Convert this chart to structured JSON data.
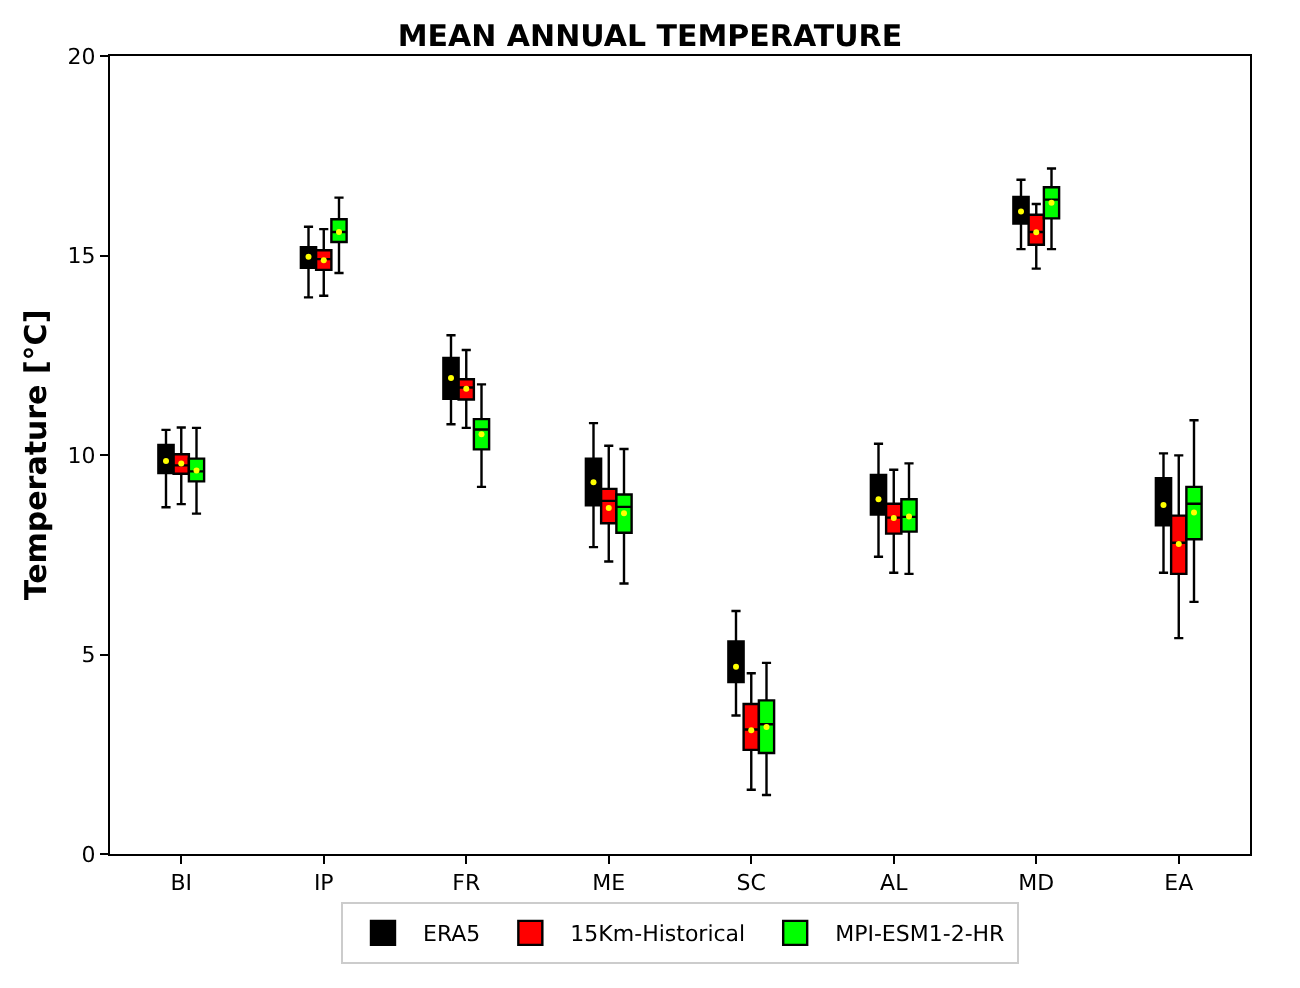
{
  "chart_data": {
    "type": "box",
    "title": "MEAN ANNUAL TEMPERATURE",
    "ylabel": "Temperature [°C]",
    "categories": [
      "BI",
      "IP",
      "FR",
      "ME",
      "SC",
      "AL",
      "MD",
      "EA"
    ],
    "series": [
      {
        "name": "ERA5",
        "color": "#000000",
        "boxes": [
          {
            "low": 8.69,
            "q1": 9.55,
            "median": 9.8,
            "q3": 10.25,
            "high": 10.63,
            "mean": 9.85
          },
          {
            "low": 13.95,
            "q1": 14.69,
            "median": 14.96,
            "q3": 15.21,
            "high": 15.72,
            "mean": 14.97
          },
          {
            "low": 10.77,
            "q1": 11.41,
            "median": 12.03,
            "q3": 12.43,
            "high": 13.0,
            "mean": 11.93
          },
          {
            "low": 7.69,
            "q1": 8.74,
            "median": 9.43,
            "q3": 9.91,
            "high": 10.8,
            "mean": 9.32
          },
          {
            "low": 3.47,
            "q1": 4.31,
            "median": 4.87,
            "q3": 5.33,
            "high": 6.09,
            "mean": 4.69
          },
          {
            "low": 7.45,
            "q1": 8.51,
            "median": 8.88,
            "q3": 9.5,
            "high": 10.28,
            "mean": 8.89
          },
          {
            "low": 15.16,
            "q1": 15.8,
            "median": 16.07,
            "q3": 16.47,
            "high": 16.9,
            "mean": 16.1
          },
          {
            "low": 7.05,
            "q1": 8.24,
            "median": 8.78,
            "q3": 9.42,
            "high": 10.04,
            "mean": 8.75
          }
        ]
      },
      {
        "name": "15Km-Historical",
        "color": "#ff0000",
        "boxes": [
          {
            "low": 8.77,
            "q1": 9.53,
            "median": 9.74,
            "q3": 10.02,
            "high": 10.69,
            "mean": 9.79
          },
          {
            "low": 13.99,
            "q1": 14.64,
            "median": 14.91,
            "q3": 15.13,
            "high": 15.66,
            "mean": 14.88
          },
          {
            "low": 10.68,
            "q1": 11.39,
            "median": 11.69,
            "q3": 11.9,
            "high": 12.63,
            "mean": 11.66
          },
          {
            "low": 7.33,
            "q1": 8.29,
            "median": 8.85,
            "q3": 9.15,
            "high": 10.23,
            "mean": 8.67
          },
          {
            "low": 1.61,
            "q1": 2.61,
            "median": 3.12,
            "q3": 3.76,
            "high": 4.53,
            "mean": 3.1
          },
          {
            "low": 7.05,
            "q1": 8.03,
            "median": 8.43,
            "q3": 8.78,
            "high": 9.63,
            "mean": 8.42
          },
          {
            "low": 14.67,
            "q1": 15.27,
            "median": 15.59,
            "q3": 16.02,
            "high": 16.29,
            "mean": 15.58
          },
          {
            "low": 5.41,
            "q1": 7.02,
            "median": 7.8,
            "q3": 8.48,
            "high": 9.99,
            "mean": 7.77
          }
        ]
      },
      {
        "name": "MPI-ESM1-2-HR",
        "color": "#00ff00",
        "boxes": [
          {
            "low": 8.53,
            "q1": 9.34,
            "median": 9.59,
            "q3": 9.91,
            "high": 10.68,
            "mean": 9.61
          },
          {
            "low": 14.56,
            "q1": 15.34,
            "median": 15.59,
            "q3": 15.91,
            "high": 16.45,
            "mean": 15.59
          },
          {
            "low": 9.2,
            "q1": 10.14,
            "median": 10.64,
            "q3": 10.9,
            "high": 11.77,
            "mean": 10.52
          },
          {
            "low": 6.78,
            "q1": 8.05,
            "median": 8.7,
            "q3": 9.01,
            "high": 10.15,
            "mean": 8.54
          },
          {
            "low": 1.48,
            "q1": 2.53,
            "median": 3.25,
            "q3": 3.85,
            "high": 4.79,
            "mean": 3.18
          },
          {
            "low": 7.02,
            "q1": 8.08,
            "median": 8.45,
            "q3": 8.89,
            "high": 9.79,
            "mean": 8.46
          },
          {
            "low": 15.16,
            "q1": 15.93,
            "median": 16.4,
            "q3": 16.71,
            "high": 17.18,
            "mean": 16.32
          },
          {
            "low": 6.32,
            "q1": 7.89,
            "median": 8.78,
            "q3": 9.2,
            "high": 10.87,
            "mean": 8.56
          }
        ]
      }
    ],
    "ylim": [
      0,
      20
    ],
    "yticks": [
      0,
      5,
      10,
      15,
      20
    ],
    "legend": "bottom"
  }
}
